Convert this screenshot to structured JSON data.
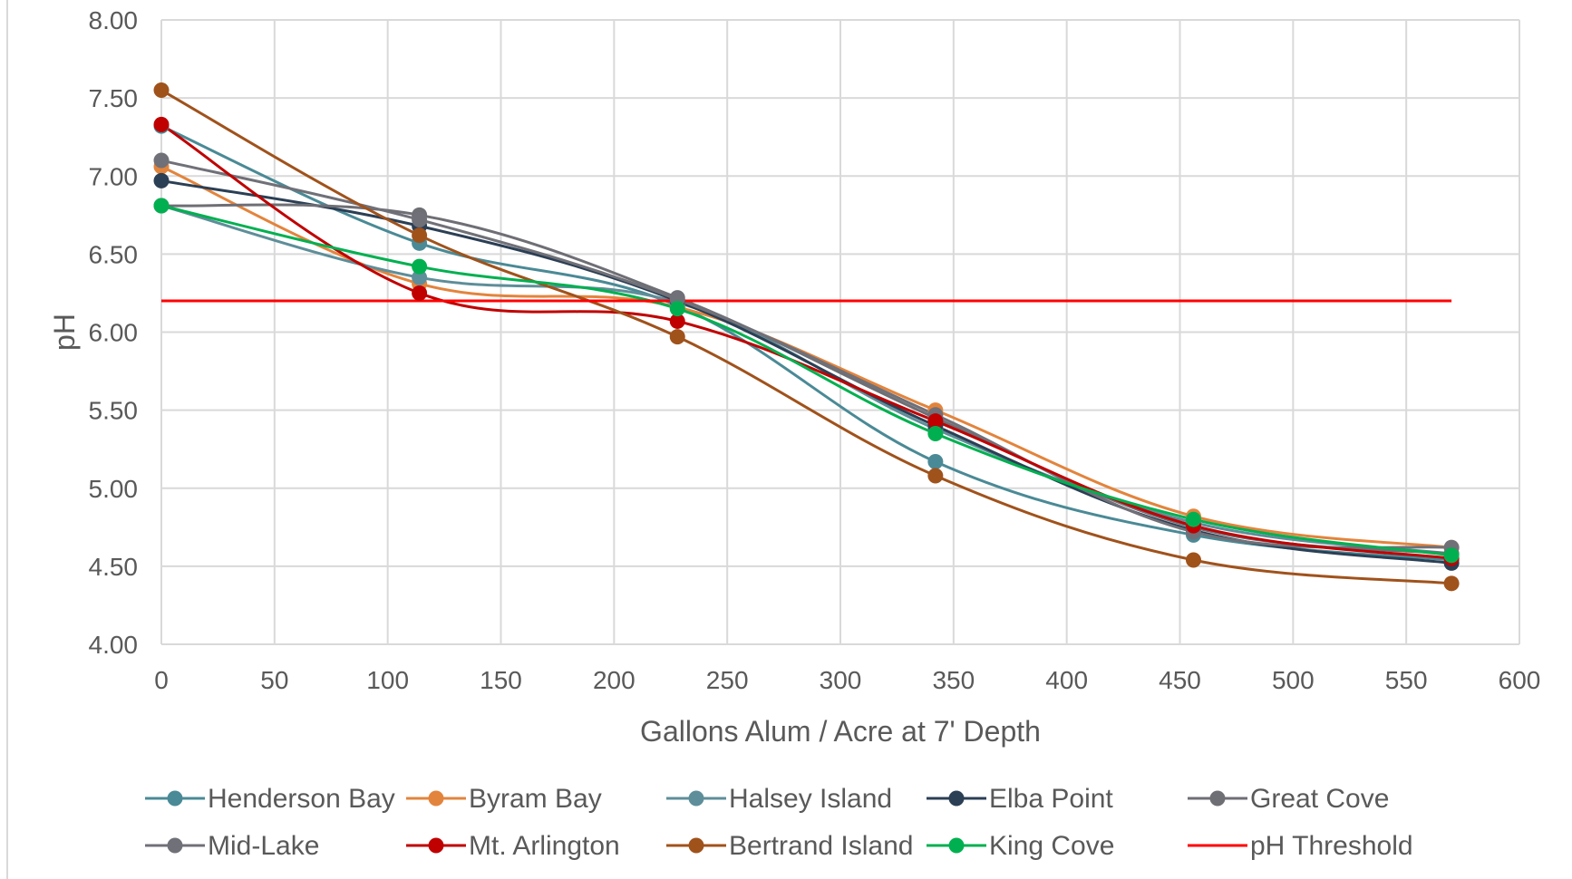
{
  "chart_data": {
    "type": "line",
    "title": "",
    "xlabel": "Gallons Alum / Acre at 7' Depth",
    "ylabel": "pH",
    "xlim": [
      0,
      600
    ],
    "ylim": [
      4.0,
      8.0
    ],
    "x_ticks": [
      "0",
      "50",
      "100",
      "150",
      "200",
      "250",
      "300",
      "350",
      "400",
      "450",
      "500",
      "550",
      "600"
    ],
    "y_ticks": [
      "4.00",
      "4.50",
      "5.00",
      "5.50",
      "6.00",
      "6.50",
      "7.00",
      "7.50",
      "8.00"
    ],
    "grid": true,
    "legend_position": "bottom",
    "x": [
      0,
      114,
      228,
      342,
      456,
      570
    ],
    "series": [
      {
        "name": "Henderson Bay",
        "color": "#4A8A96",
        "values": [
          7.32,
          6.57,
          6.17,
          5.17,
          4.7,
          4.54
        ],
        "marker": true
      },
      {
        "name": "Byram Bay",
        "color": "#E3843C",
        "values": [
          7.06,
          6.31,
          6.16,
          5.5,
          4.82,
          4.62
        ],
        "marker": true
      },
      {
        "name": "Halsey Island",
        "color": "#5E8E99",
        "values": [
          6.81,
          6.35,
          6.19,
          5.38,
          4.78,
          4.58
        ],
        "marker": true
      },
      {
        "name": "Elba Point",
        "color": "#2B3F55",
        "values": [
          6.97,
          6.68,
          6.2,
          5.4,
          4.73,
          4.52
        ],
        "marker": true
      },
      {
        "name": "Great Cove",
        "color": "#6E6E75",
        "values": [
          6.81,
          6.75,
          6.22,
          5.45,
          4.75,
          4.58
        ],
        "marker": true
      },
      {
        "name": "Mid-Lake",
        "color": "#707078",
        "values": [
          7.1,
          6.72,
          6.21,
          5.47,
          4.72,
          4.62
        ],
        "marker": true
      },
      {
        "name": "Mt. Arlington",
        "color": "#C00000",
        "values": [
          7.33,
          6.25,
          6.07,
          5.43,
          4.76,
          4.55
        ],
        "marker": true
      },
      {
        "name": "Bertrand Island",
        "color": "#A0521B",
        "values": [
          7.55,
          6.62,
          5.97,
          5.08,
          4.54,
          4.39
        ],
        "marker": true
      },
      {
        "name": "King Cove",
        "color": "#00B050",
        "values": [
          6.81,
          6.42,
          6.15,
          5.35,
          4.8,
          4.57
        ],
        "marker": true
      },
      {
        "name": "pH Threshold",
        "color": "#FF0000",
        "values": [
          6.2,
          6.2,
          6.2,
          6.2,
          6.2,
          6.2
        ],
        "marker": false
      }
    ]
  }
}
